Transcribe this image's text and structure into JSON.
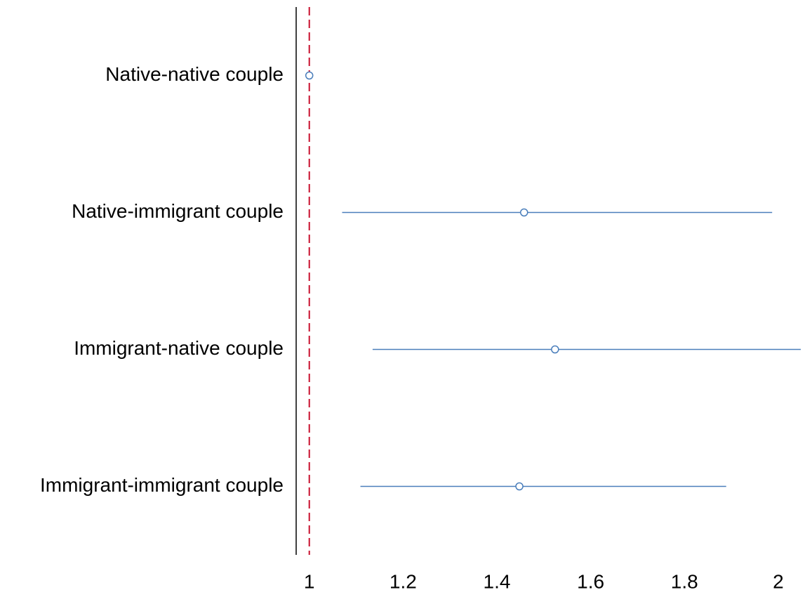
{
  "chart_data": {
    "type": "forest",
    "categories": [
      "Native-native couple",
      "Native-immigrant couple",
      "Immigrant-native couple",
      "Immigrant-immigrant couple"
    ],
    "series": [
      {
        "color": "#4a7ebb",
        "values": [
          1,
          1.458,
          1.524,
          1.448
        ],
        "lower": [
          null,
          1.07,
          1.135,
          1.109
        ],
        "upper": [
          null,
          1.987,
          2.048,
          1.889
        ]
      }
    ],
    "reference_line": 1,
    "reference_color": "#c8102e",
    "xlim": [
      0.972,
      2.072
    ],
    "xticks": [
      1,
      1.2,
      1.4,
      1.6,
      1.8,
      2
    ]
  }
}
